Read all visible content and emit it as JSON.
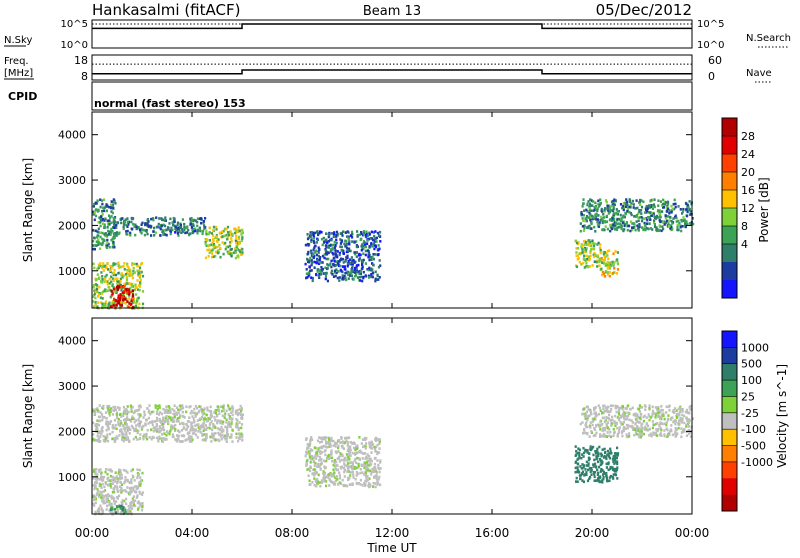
{
  "header": {
    "station": "Hankasalmi (fitACF)",
    "beam": "Beam 13",
    "date": "05/Dec/2012"
  },
  "sky_panel": {
    "label": "N.Sky",
    "ticks_left": [
      "10^5",
      "10^0"
    ],
    "ticks_right": [
      "10^5",
      "10^0"
    ],
    "right_label": "N.Search"
  },
  "freq_panel": {
    "label_line1": "Freq.",
    "label_line2": "[MHz]",
    "ticks_left": [
      "18",
      "8"
    ],
    "ticks_right": [
      "60",
      "0"
    ],
    "right_label": "Nave"
  },
  "cpid": {
    "label": "CPID",
    "text": "normal (fast stereo) 153"
  },
  "axes": {
    "x_ticks": [
      "00:00",
      "04:00",
      "08:00",
      "12:00",
      "16:00",
      "20:00",
      "00:00"
    ],
    "x_label": "Time UT",
    "y_ticks": [
      "1000",
      "2000",
      "3000",
      "4000"
    ],
    "y_label": "Slant Range [km]"
  },
  "power_scale": {
    "label": "Power [dB]",
    "ticks": [
      "4",
      "8",
      "12",
      "16",
      "20",
      "24",
      "28"
    ],
    "colors": [
      "#1515ff",
      "#1c3ca0",
      "#2f7e6a",
      "#3ca356",
      "#7fd13a",
      "#ffc000",
      "#ff8000",
      "#ff4000",
      "#e00000",
      "#b00000"
    ]
  },
  "velocity_scale": {
    "label": "Velocity [m s^-1]",
    "ticks": [
      "1000",
      "500",
      "100",
      "25",
      "-25",
      "-100",
      "-500",
      "-1000"
    ],
    "colors": [
      "#1515ff",
      "#1c3ca0",
      "#2f7e6a",
      "#3ca356",
      "#7fd13a",
      "#bfbfbf",
      "#ffc000",
      "#ff8000",
      "#ff4000",
      "#e00000",
      "#b00000"
    ]
  },
  "chart_data": [
    {
      "type": "line",
      "title": "N.Sky / N.Search",
      "x_hours": [
        0,
        6,
        6,
        18,
        18,
        24
      ],
      "y_log": [
        4.1,
        4.1,
        5,
        5,
        4.1,
        4.1
      ],
      "search_level_log": 5
    },
    {
      "type": "line",
      "title": "Freq / Nave",
      "x_hours": [
        0,
        6,
        6,
        18,
        18,
        24
      ],
      "freq_mhz": [
        10.5,
        10.5,
        12,
        12,
        10.5,
        10.5
      ],
      "nave_level": 38
    },
    {
      "type": "heatmap",
      "title": "Power",
      "xlim_hours": [
        0,
        24
      ],
      "ylim_km": [
        180,
        4500
      ],
      "regions": [
        {
          "t0": 0.0,
          "t1": 0.9,
          "r0": 1500,
          "r1": 2600,
          "value": 9
        },
        {
          "t0": 0.8,
          "t1": 4.5,
          "r0": 1800,
          "r1": 2200,
          "value": 8
        },
        {
          "t0": 4.5,
          "t1": 6.0,
          "r0": 1300,
          "r1": 2000,
          "value": 14
        },
        {
          "t0": 8.5,
          "t1": 11.5,
          "r0": 800,
          "r1": 1900,
          "value": 6
        },
        {
          "t0": 0.0,
          "t1": 2.0,
          "r0": 200,
          "r1": 1200,
          "value": 14
        },
        {
          "t0": 0.7,
          "t1": 1.6,
          "r0": 200,
          "r1": 700,
          "value": 28
        },
        {
          "t0": 19.3,
          "t1": 20.3,
          "r0": 1100,
          "r1": 1700,
          "value": 14
        },
        {
          "t0": 20.3,
          "t1": 21.0,
          "r0": 900,
          "r1": 1500,
          "value": 16
        },
        {
          "t0": 19.5,
          "t1": 24.0,
          "r0": 1900,
          "r1": 2600,
          "value": 9
        }
      ]
    },
    {
      "type": "heatmap",
      "title": "Velocity",
      "xlim_hours": [
        0,
        24
      ],
      "ylim_km": [
        180,
        4500
      ],
      "regions": [
        {
          "t0": 0.0,
          "t1": 6.0,
          "r0": 1800,
          "r1": 2600,
          "value": 0
        },
        {
          "t0": 8.5,
          "t1": 11.5,
          "r0": 800,
          "r1": 1900,
          "value": 0
        },
        {
          "t0": 0.0,
          "t1": 2.0,
          "r0": 200,
          "r1": 1200,
          "value": 0
        },
        {
          "t0": 0.7,
          "t1": 1.3,
          "r0": 200,
          "r1": 400,
          "value": 60
        },
        {
          "t0": 19.3,
          "t1": 21.0,
          "r0": 900,
          "r1": 1700,
          "value": 120
        },
        {
          "t0": 19.5,
          "t1": 24.0,
          "r0": 1900,
          "r1": 2600,
          "value": 0
        }
      ]
    }
  ]
}
